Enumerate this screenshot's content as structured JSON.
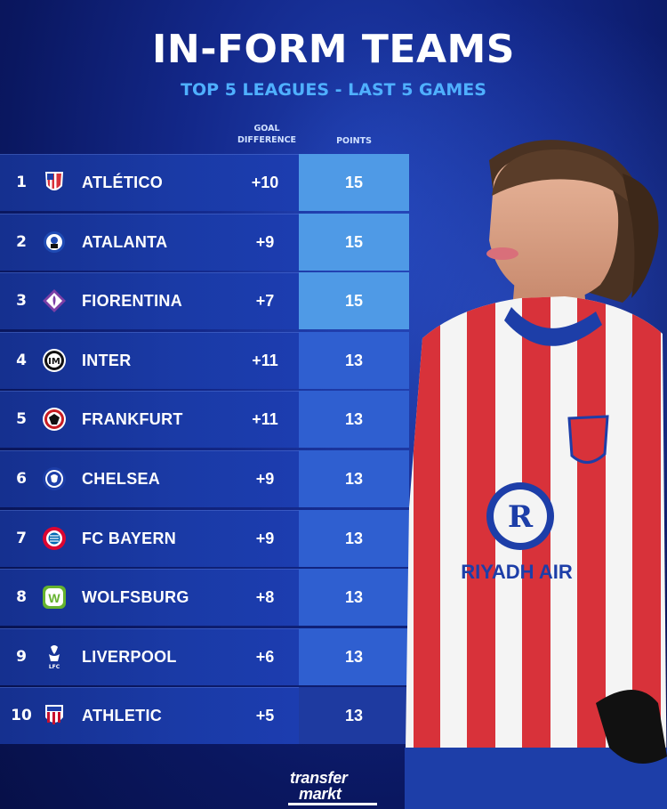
{
  "title": "IN-FORM TEAMS",
  "subtitle": "TOP 5 LEAGUES - LAST 5 GAMES",
  "columns": {
    "goal_difference_line1": "GOAL",
    "goal_difference_line2": "DIFFERENCE",
    "points": "POINTS"
  },
  "rows": [
    {
      "rank": "1",
      "team": "ATLÉTICO",
      "gd": "+10",
      "points": "15",
      "crest": "atletico-crest-icon"
    },
    {
      "rank": "2",
      "team": "ATALANTA",
      "gd": "+9",
      "points": "15",
      "crest": "atalanta-crest-icon"
    },
    {
      "rank": "3",
      "team": "FIORENTINA",
      "gd": "+7",
      "points": "15",
      "crest": "fiorentina-crest-icon"
    },
    {
      "rank": "4",
      "team": "INTER",
      "gd": "+11",
      "points": "13",
      "crest": "inter-crest-icon"
    },
    {
      "rank": "5",
      "team": "FRANKFURT",
      "gd": "+11",
      "points": "13",
      "crest": "frankfurt-crest-icon"
    },
    {
      "rank": "6",
      "team": "CHELSEA",
      "gd": "+9",
      "points": "13",
      "crest": "chelsea-crest-icon"
    },
    {
      "rank": "7",
      "team": "FC BAYERN",
      "gd": "+9",
      "points": "13",
      "crest": "bayern-crest-icon"
    },
    {
      "rank": "8",
      "team": "WOLFSBURG",
      "gd": "+8",
      "points": "13",
      "crest": "wolfsburg-crest-icon"
    },
    {
      "rank": "9",
      "team": "LIVERPOOL",
      "gd": "+6",
      "points": "13",
      "crest": "liverpool-crest-icon"
    },
    {
      "rank": "10",
      "team": "ATHLETIC",
      "gd": "+5",
      "points": "13",
      "crest": "athletic-crest-icon"
    }
  ],
  "colors": {
    "accent": "#4fb0ff",
    "points_top": "#4f9ae6",
    "points_other": "#2f5fd0",
    "points_last": "#1e3aa0"
  },
  "logo": {
    "line1": "transfer",
    "line2": "markt"
  },
  "jersey_sponsor": "RIYADH AIR"
}
